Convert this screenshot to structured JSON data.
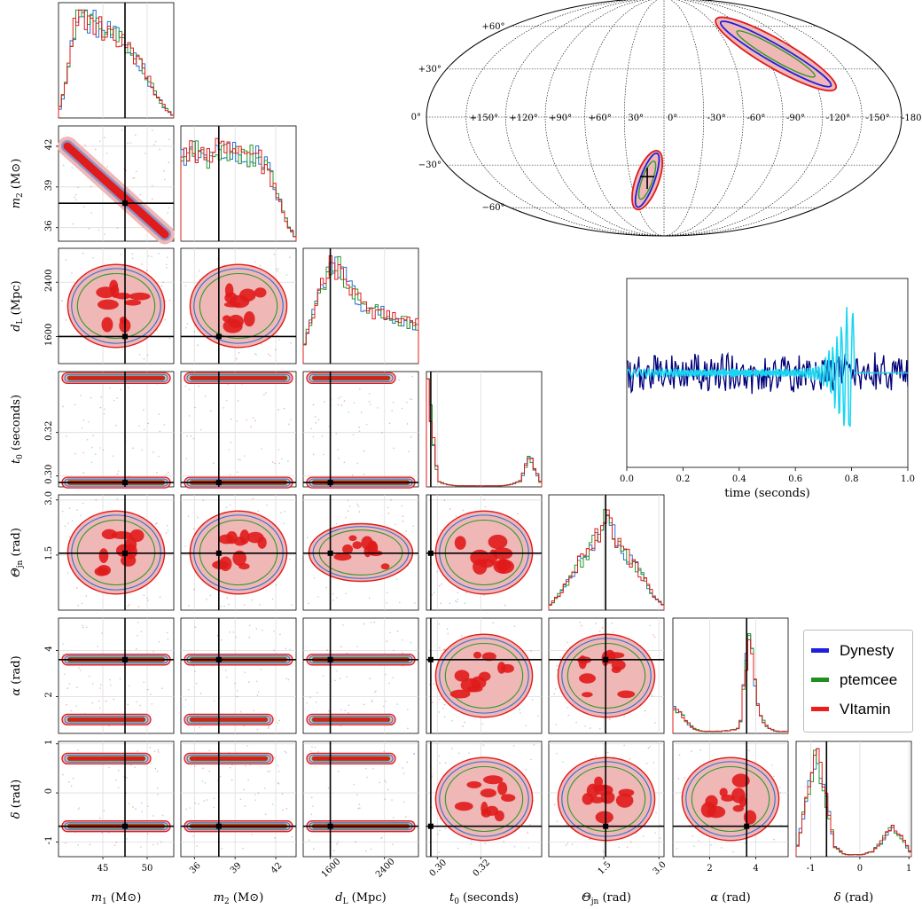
{
  "legend": [
    {
      "name": "Dynesty",
      "color": "#1f1fe0"
    },
    {
      "name": "ptemcee",
      "color": "#1f8f1f"
    },
    {
      "name": "VItamin",
      "color": "#ee1c1c"
    }
  ],
  "colors": {
    "dynesty": "#2b6fd6",
    "ptemcee": "#2b9a2b",
    "vitamin": "#e01b1b",
    "vitamin_fill": "#f0b7b7",
    "truth": "#000000",
    "waveform_noisy": "#00007a",
    "waveform_signal": "#19d5f2",
    "grid": "#dcdcdc"
  },
  "chart_data": [
    {
      "type": "corner",
      "parameters": [
        {
          "key": "m1",
          "label": "m_1 (M⊙)",
          "label_main": "m",
          "label_sub": "1",
          "label_unit": " (M⊙)",
          "range": [
            40,
            53
          ],
          "ticks": [
            45,
            50
          ],
          "truth": 47.5
        },
        {
          "key": "m2",
          "label": "m_2 (M⊙)",
          "label_main": "m",
          "label_sub": "2",
          "label_unit": " (M⊙)",
          "range": [
            35,
            43.5
          ],
          "ticks": [
            36,
            39,
            42
          ],
          "truth": 37.8
        },
        {
          "key": "dL",
          "label": "d_L (Mpc)",
          "label_main": "d",
          "label_sub": "L",
          "label_unit": " (Mpc)",
          "range": [
            1200,
            2900
          ],
          "ticks": [
            1600,
            2400
          ],
          "truth": 1600
        },
        {
          "key": "t0",
          "label": "t_0 (seconds)",
          "label_main": "t",
          "label_sub": "0",
          "label_unit": " (seconds)",
          "range": [
            0.295,
            0.348
          ],
          "ticks": [
            0.3,
            0.32
          ],
          "tick_labels": [
            "0.30",
            "0.32"
          ],
          "truth": 0.297
        },
        {
          "key": "theta_jn",
          "label": "Θ_jn (rad)",
          "label_main": "Θ",
          "label_sub": "jn",
          "label_unit": " (rad)",
          "range": [
            0,
            3.14
          ],
          "ticks": [
            1.5,
            3.0
          ],
          "tick_labels": [
            "1.5",
            "3.0"
          ],
          "truth": 1.55
        },
        {
          "key": "alpha",
          "label": "α (rad)",
          "label_main": "α",
          "label_sub": "",
          "label_unit": " (rad)",
          "range": [
            0.4,
            5.4
          ],
          "ticks": [
            2,
            4
          ],
          "truth": 3.6
        },
        {
          "key": "delta",
          "label": "δ (rad)",
          "label_main": "δ",
          "label_sub": "",
          "label_unit": " (rad)",
          "range": [
            -1.3,
            1.05
          ],
          "ticks": [
            -1,
            0,
            1
          ],
          "truth": -0.68
        }
      ],
      "series": [
        {
          "name": "Dynesty"
        },
        {
          "name": "ptemcee"
        },
        {
          "name": "VItamin"
        }
      ]
    },
    {
      "type": "line",
      "xlabel": "time (seconds)",
      "xlim": [
        0.0,
        1.0
      ],
      "xticks": [
        0.0,
        0.2,
        0.4,
        0.6,
        0.8,
        1.0
      ],
      "xtick_labels": [
        "0.0",
        "0.2",
        "0.4",
        "0.6",
        "0.8",
        "1.0"
      ],
      "series": [
        {
          "role": "noisy whitened strain",
          "color": "#00007a"
        },
        {
          "role": "signal",
          "color": "#19d5f2",
          "peak_time": 0.81
        }
      ]
    },
    {
      "type": "sky-map",
      "projection": "mollweide",
      "lat_ticks": [
        "+60°",
        "+30°",
        "0°",
        "−30°",
        "−60°"
      ],
      "lon_ticks": [
        "+150°",
        "+120°",
        "+90°",
        "+60°",
        "30°",
        "0°",
        "-30°",
        "-60°",
        "-90°",
        "-120°",
        "-150°",
        "-180°"
      ],
      "regions": [
        {
          "center_lon": -100,
          "center_lat": 40
        },
        {
          "center_lon": 15,
          "center_lat": -40
        }
      ]
    }
  ]
}
